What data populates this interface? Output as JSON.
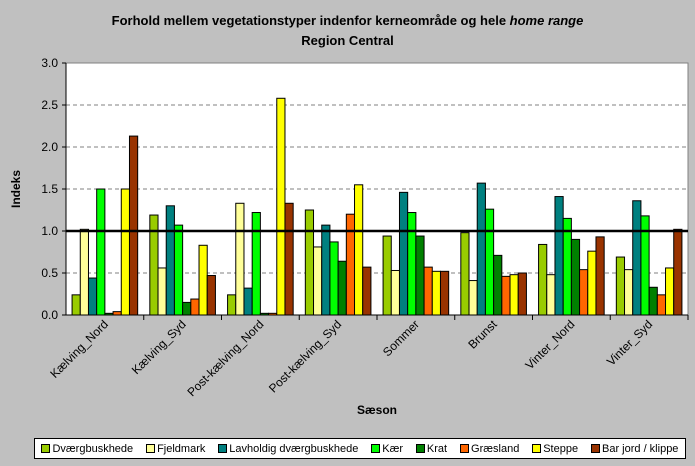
{
  "chart_data": {
    "type": "bar",
    "title_line1": "Forhold mellem vegetationstyper indenfor kerneområde og hele ",
    "title_italic": "home range",
    "title_line2": "Region Central",
    "xlabel": "Sæson",
    "ylabel": "Indeks",
    "ylim": [
      0,
      3.0
    ],
    "yticks": [
      "0.0",
      "0.5",
      "1.0",
      "1.5",
      "2.0",
      "2.5",
      "3.0"
    ],
    "grid": true,
    "reference_line": 1.0,
    "legend_position": "bottom",
    "categories": [
      "Kælving_Nord",
      "Kælving_Syd",
      "Post-kælving_Nord",
      "Post-kælving_Syd",
      "Sommer",
      "Brunst",
      "Vinter_Nord",
      "Vinter_Syd"
    ],
    "series": [
      {
        "name": "Dværgbuskhede",
        "color": "#99cc00",
        "values": [
          0.24,
          1.19,
          0.24,
          1.25,
          0.94,
          0.98,
          0.84,
          0.69
        ]
      },
      {
        "name": "Fjeldmark",
        "color": "#ffff99",
        "values": [
          1.02,
          0.56,
          1.33,
          0.81,
          0.53,
          0.41,
          0.48,
          0.54
        ]
      },
      {
        "name": "Lavholdig dværgbuskhede",
        "color": "#008080",
        "values": [
          0.44,
          1.3,
          0.32,
          1.07,
          1.46,
          1.57,
          1.41,
          1.36
        ]
      },
      {
        "name": "Kær",
        "color": "#00ff00",
        "values": [
          1.5,
          1.07,
          1.22,
          0.87,
          1.22,
          1.26,
          1.15,
          1.18
        ]
      },
      {
        "name": "Krat",
        "color": "#008000",
        "values": [
          0.02,
          0.15,
          0.02,
          0.64,
          0.94,
          0.71,
          0.9,
          0.33
        ]
      },
      {
        "name": "Græsland",
        "color": "#ff6600",
        "values": [
          0.04,
          0.19,
          0.02,
          1.2,
          0.57,
          0.46,
          0.54,
          0.24
        ]
      },
      {
        "name": "Steppe",
        "color": "#ffff00",
        "values": [
          1.5,
          0.83,
          2.58,
          1.55,
          0.52,
          0.48,
          0.76,
          0.56
        ]
      },
      {
        "name": "Bar jord / klippe",
        "color": "#993300",
        "values": [
          2.13,
          0.47,
          1.33,
          0.57,
          0.52,
          0.5,
          0.93,
          1.02
        ]
      }
    ]
  }
}
